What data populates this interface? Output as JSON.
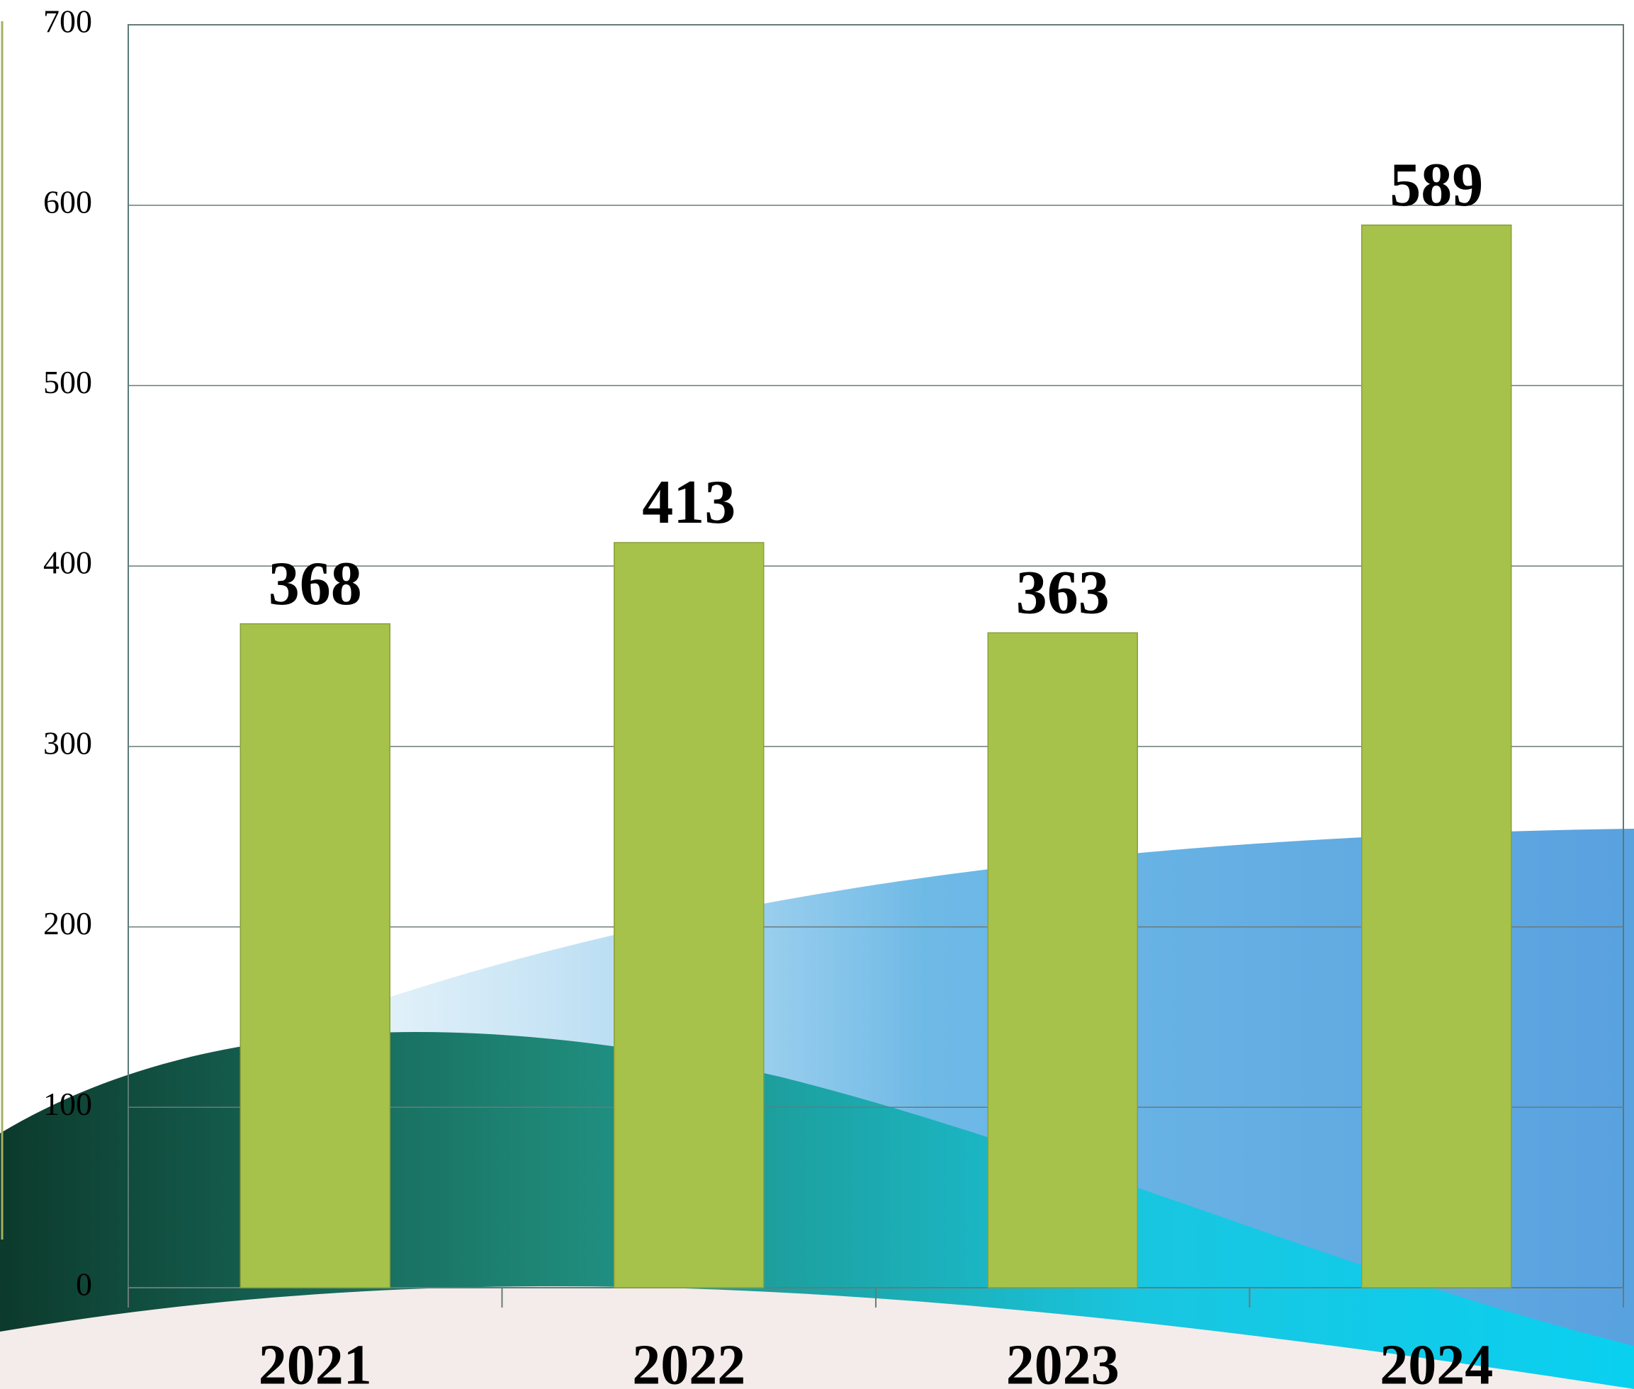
{
  "chart_data": {
    "type": "bar",
    "categories": [
      "2021",
      "2022",
      "2023",
      "2024"
    ],
    "values": [
      368,
      413,
      363,
      589
    ],
    "color": "#a6c24a",
    "ylim": [
      0,
      700
    ],
    "yticks": [
      0,
      100,
      200,
      300,
      400,
      500,
      600,
      700
    ],
    "grid": true
  }
}
